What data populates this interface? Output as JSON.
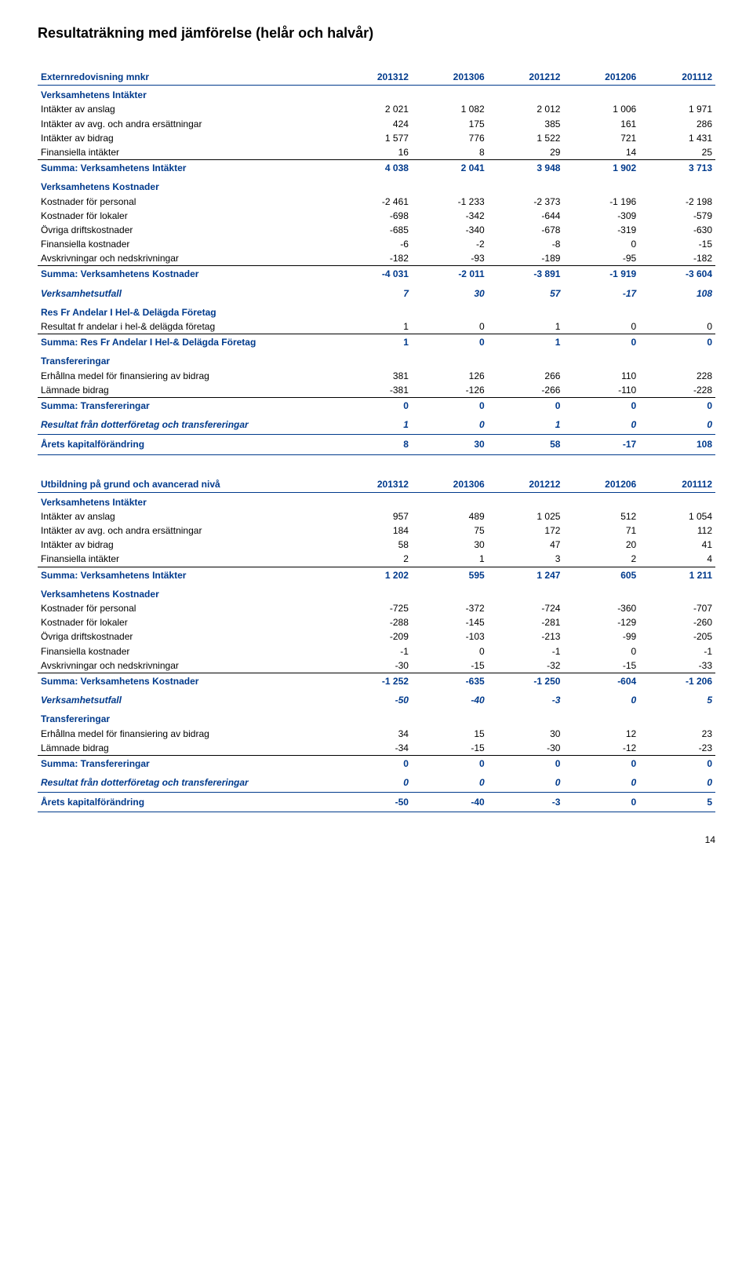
{
  "page_title": "Resultaträkning med jämförelse (helår och halvår)",
  "page_number": "14",
  "colors": {
    "heading": "#003a8c",
    "rule": "#003a8c",
    "text": "#000000",
    "bg": "#ffffff",
    "thin_rule": "#000000"
  },
  "tables": [
    {
      "header": {
        "label": "Externredovisning mnkr",
        "cols": [
          "201312",
          "201306",
          "201212",
          "201206",
          "201112"
        ]
      },
      "rows": [
        {
          "type": "sect",
          "label": "Verksamhetens Intäkter"
        },
        {
          "type": "data",
          "label": "Intäkter av anslag",
          "v": [
            "2 021",
            "1 082",
            "2 012",
            "1 006",
            "1 971"
          ]
        },
        {
          "type": "data",
          "label": "Intäkter av avg. och andra ersättningar",
          "v": [
            "424",
            "175",
            "385",
            "161",
            "286"
          ]
        },
        {
          "type": "data",
          "label": "Intäkter av bidrag",
          "v": [
            "1 577",
            "776",
            "1 522",
            "721",
            "1 431"
          ]
        },
        {
          "type": "data",
          "label": "Finansiella intäkter",
          "v": [
            "16",
            "8",
            "29",
            "14",
            "25"
          ]
        },
        {
          "type": "sum",
          "topline": true,
          "label": "Summa: Verksamhetens Intäkter",
          "v": [
            "4 038",
            "2 041",
            "3 948",
            "1 902",
            "3 713"
          ]
        },
        {
          "type": "sect",
          "label": "Verksamhetens Kostnader"
        },
        {
          "type": "data",
          "label": "Kostnader för personal",
          "v": [
            "-2 461",
            "-1 233",
            "-2 373",
            "-1 196",
            "-2 198"
          ]
        },
        {
          "type": "data",
          "label": "Kostnader för lokaler",
          "v": [
            "-698",
            "-342",
            "-644",
            "-309",
            "-579"
          ]
        },
        {
          "type": "data",
          "label": "Övriga driftskostnader",
          "v": [
            "-685",
            "-340",
            "-678",
            "-319",
            "-630"
          ]
        },
        {
          "type": "data",
          "label": "Finansiella kostnader",
          "v": [
            "-6",
            "-2",
            "-8",
            "0",
            "-15"
          ]
        },
        {
          "type": "data",
          "label": "Avskrivningar och nedskrivningar",
          "v": [
            "-182",
            "-93",
            "-189",
            "-95",
            "-182"
          ]
        },
        {
          "type": "sum",
          "topline": true,
          "label": "Summa: Verksamhetens Kostnader",
          "v": [
            "-4 031",
            "-2 011",
            "-3 891",
            "-1 919",
            "-3 604"
          ]
        },
        {
          "type": "utfall",
          "label": "Verksamhetsutfall",
          "v": [
            "7",
            "30",
            "57",
            "-17",
            "108"
          ]
        },
        {
          "type": "sect",
          "label": "Res Fr Andelar I Hel-& Delägda Företag"
        },
        {
          "type": "data",
          "label": "Resultat fr andelar i hel-& delägda företag",
          "v": [
            "1",
            "0",
            "1",
            "0",
            "0"
          ]
        },
        {
          "type": "sum",
          "topline": true,
          "label": "Summa: Res Fr Andelar I Hel-& Delägda Företag",
          "v": [
            "1",
            "0",
            "1",
            "0",
            "0"
          ]
        },
        {
          "type": "sect",
          "label": "Transfereringar"
        },
        {
          "type": "data",
          "label": "Erhållna medel för finansiering av bidrag",
          "v": [
            "381",
            "126",
            "266",
            "110",
            "228"
          ]
        },
        {
          "type": "data",
          "label": "Lämnade bidrag",
          "v": [
            "-381",
            "-126",
            "-266",
            "-110",
            "-228"
          ]
        },
        {
          "type": "sum",
          "topline": true,
          "label": "Summa: Transfereringar",
          "v": [
            "0",
            "0",
            "0",
            "0",
            "0"
          ]
        },
        {
          "type": "dotter",
          "label": "Resultat från dotterföretag och transfereringar",
          "v": [
            "1",
            "0",
            "1",
            "0",
            "0"
          ]
        },
        {
          "type": "kap",
          "label": "Årets kapitalförändring",
          "v": [
            "8",
            "30",
            "58",
            "-17",
            "108"
          ]
        }
      ]
    },
    {
      "header": {
        "label": "Utbildning på grund och avancerad nivå",
        "cols": [
          "201312",
          "201306",
          "201212",
          "201206",
          "201112"
        ]
      },
      "rows": [
        {
          "type": "sect",
          "label": "Verksamhetens Intäkter"
        },
        {
          "type": "data",
          "label": "Intäkter av anslag",
          "v": [
            "957",
            "489",
            "1 025",
            "512",
            "1 054"
          ]
        },
        {
          "type": "data",
          "label": "Intäkter av avg. och andra ersättningar",
          "v": [
            "184",
            "75",
            "172",
            "71",
            "112"
          ]
        },
        {
          "type": "data",
          "label": "Intäkter av bidrag",
          "v": [
            "58",
            "30",
            "47",
            "20",
            "41"
          ]
        },
        {
          "type": "data",
          "label": "Finansiella intäkter",
          "v": [
            "2",
            "1",
            "3",
            "2",
            "4"
          ]
        },
        {
          "type": "sum",
          "topline": true,
          "label": "Summa: Verksamhetens Intäkter",
          "v": [
            "1 202",
            "595",
            "1 247",
            "605",
            "1 211"
          ]
        },
        {
          "type": "sect",
          "label": "Verksamhetens Kostnader"
        },
        {
          "type": "data",
          "label": "Kostnader för personal",
          "v": [
            "-725",
            "-372",
            "-724",
            "-360",
            "-707"
          ]
        },
        {
          "type": "data",
          "label": "Kostnader för lokaler",
          "v": [
            "-288",
            "-145",
            "-281",
            "-129",
            "-260"
          ]
        },
        {
          "type": "data",
          "label": "Övriga driftskostnader",
          "v": [
            "-209",
            "-103",
            "-213",
            "-99",
            "-205"
          ]
        },
        {
          "type": "data",
          "label": "Finansiella kostnader",
          "v": [
            "-1",
            "0",
            "-1",
            "0",
            "-1"
          ]
        },
        {
          "type": "data",
          "label": "Avskrivningar och nedskrivningar",
          "v": [
            "-30",
            "-15",
            "-32",
            "-15",
            "-33"
          ]
        },
        {
          "type": "sum",
          "topline": true,
          "label": "Summa: Verksamhetens Kostnader",
          "v": [
            "-1 252",
            "-635",
            "-1 250",
            "-604",
            "-1 206"
          ]
        },
        {
          "type": "utfall",
          "label": "Verksamhetsutfall",
          "v": [
            "-50",
            "-40",
            "-3",
            "0",
            "5"
          ]
        },
        {
          "type": "sect",
          "label": "Transfereringar"
        },
        {
          "type": "data",
          "label": "Erhållna medel för finansiering av bidrag",
          "v": [
            "34",
            "15",
            "30",
            "12",
            "23"
          ]
        },
        {
          "type": "data",
          "label": "Lämnade bidrag",
          "v": [
            "-34",
            "-15",
            "-30",
            "-12",
            "-23"
          ]
        },
        {
          "type": "sum",
          "topline": true,
          "label": "Summa: Transfereringar",
          "v": [
            "0",
            "0",
            "0",
            "0",
            "0"
          ]
        },
        {
          "type": "dotter",
          "label": "Resultat från dotterföretag och transfereringar",
          "v": [
            "0",
            "0",
            "0",
            "0",
            "0"
          ]
        },
        {
          "type": "kap",
          "label": "Årets kapitalförändring",
          "v": [
            "-50",
            "-40",
            "-3",
            "0",
            "5"
          ]
        }
      ]
    }
  ]
}
